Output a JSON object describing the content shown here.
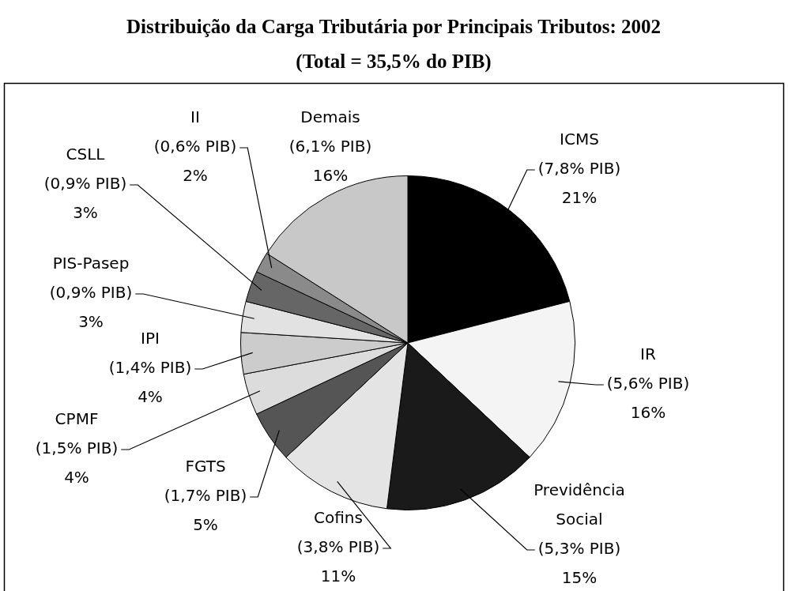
{
  "chart_data": {
    "type": "pie",
    "title": "Distribuição da Carga Tributária por Principais Tributos: 2002",
    "subtitle": "(Total = 35,5% do PIB)",
    "categories": [
      "ICMS",
      "IR",
      "Previdência Social",
      "Cofins",
      "FGTS",
      "CPMF",
      "IPI",
      "PIS-Pasep",
      "CSLL",
      "II",
      "Demais"
    ],
    "values": [
      21,
      16,
      15,
      11,
      5,
      4,
      4,
      3,
      3,
      2,
      16
    ],
    "value_labels": [
      "21%",
      "16%",
      "15%",
      "11%",
      "5%",
      "4%",
      "4%",
      "3%",
      "3%",
      "2%",
      "16%"
    ],
    "pib": [
      7.8,
      5.6,
      5.3,
      3.8,
      1.7,
      1.5,
      1.4,
      0.9,
      0.9,
      0.6,
      6.1
    ],
    "pib_labels": [
      "(7,8% PIB)",
      "(5,6% PIB)",
      "(5,3% PIB)",
      "(3,8% PIB)",
      "(1,7% PIB)",
      "(1,5% PIB)",
      "(1,4% PIB)",
      "(0,9% PIB)",
      "(0,9% PIB)",
      "(0,6% PIB)",
      "(6,1% PIB)"
    ],
    "colors": [
      "#000000",
      "#f4f4f4",
      "#1a1a1a",
      "#e4e4e4",
      "#555555",
      "#dcdcdc",
      "#cccccc",
      "#e2e2e2",
      "#666666",
      "#8a8a8a",
      "#c8c8c8"
    ],
    "data_labels": true
  }
}
